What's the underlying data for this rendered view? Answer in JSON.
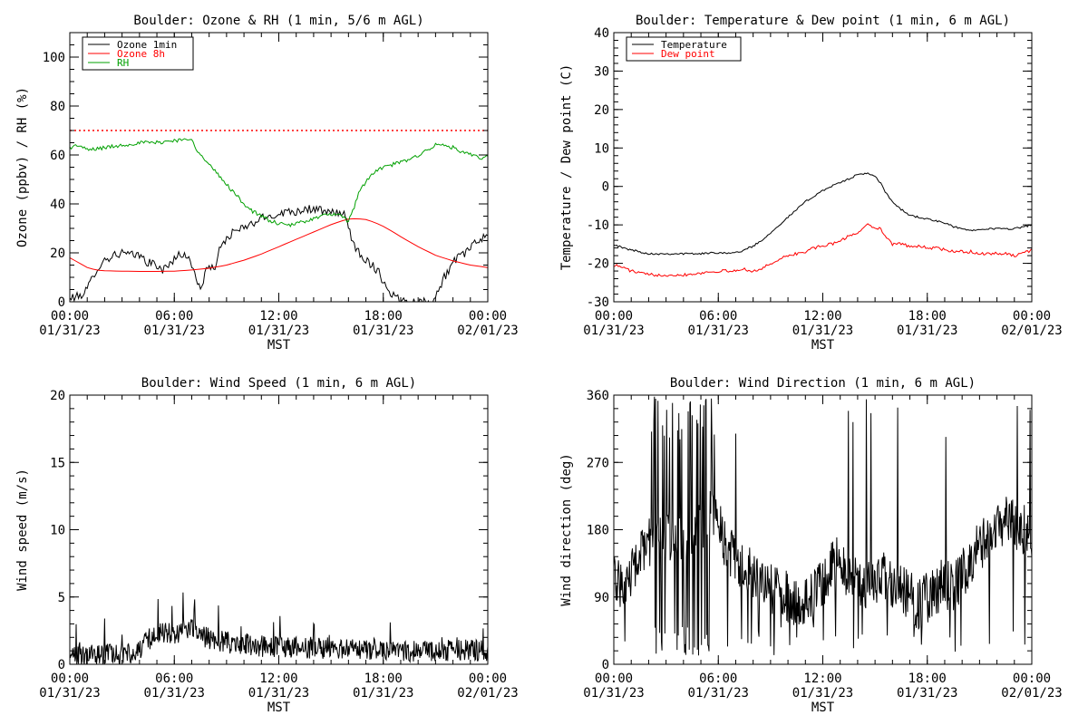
{
  "figure": {
    "background": "#ffffff",
    "colors": {
      "axis": "#000000",
      "black": "#000000",
      "red": "#ff0000",
      "green": "#00a000"
    }
  },
  "chart_data": [
    {
      "id": "ozone",
      "type": "line",
      "title": "Boulder: Ozone & RH (1 min, 5/6 m AGL)",
      "xlabel": "MST",
      "ylabel": "Ozone (ppbv) / RH (%)",
      "xlim": [
        0,
        24
      ],
      "ylim": [
        0,
        110
      ],
      "x_ticks": [
        {
          "v": 0,
          "l1": "00:00",
          "l2": "01/31/23"
        },
        {
          "v": 6,
          "l1": "06:00",
          "l2": "01/31/23"
        },
        {
          "v": 12,
          "l1": "12:00",
          "l2": "01/31/23"
        },
        {
          "v": 18,
          "l1": "18:00",
          "l2": "01/31/23"
        },
        {
          "v": 24,
          "l1": "00:00",
          "l2": "02/01/23"
        }
      ],
      "x_minor": 1,
      "y_ticks": [
        {
          "v": 0,
          "l": "0"
        },
        {
          "v": 20,
          "l": "20"
        },
        {
          "v": 40,
          "l": "40"
        },
        {
          "v": 60,
          "l": "60"
        },
        {
          "v": 80,
          "l": "80"
        },
        {
          "v": 100,
          "l": "100"
        }
      ],
      "y_minor": 5,
      "legend": {
        "position": "top-left"
      },
      "hlines": [
        {
          "y": 70,
          "color": "#ff0000",
          "style": "dotted"
        }
      ],
      "series": [
        {
          "name": "Ozone 1min",
          "color": "#000000",
          "noise": 1.8,
          "step_min": 5,
          "x": [
            0,
            0.2,
            0.5,
            1,
            1.5,
            2,
            2.5,
            3,
            3.5,
            4,
            4.5,
            5,
            5.3,
            5.6,
            6,
            6.3,
            6.6,
            7,
            7.3,
            7.6,
            7.8,
            8,
            8.3,
            8.6,
            9,
            9.5,
            10,
            10.5,
            11,
            11.5,
            12,
            12.5,
            13,
            13.5,
            14,
            14.5,
            15,
            15.5,
            15.8,
            16,
            16.2,
            16.4,
            16.8,
            17,
            17.5,
            17.8,
            18,
            18.5,
            19,
            19.5,
            20,
            20.5,
            21,
            21.5,
            22,
            22.5,
            23,
            23.5,
            24
          ],
          "y": [
            1,
            2,
            2,
            5,
            13,
            17,
            19,
            20,
            19,
            19,
            16,
            15,
            13,
            14,
            18,
            19,
            20,
            15,
            8,
            6,
            14,
            13,
            14,
            21,
            26,
            29,
            30,
            32,
            34,
            35,
            36,
            37,
            37,
            38,
            38,
            37,
            36,
            37,
            35,
            30,
            26,
            22,
            19,
            17,
            14,
            12,
            8,
            3,
            1,
            0,
            0,
            0,
            2,
            10,
            16,
            19,
            22,
            25,
            28
          ]
        },
        {
          "name": "Ozone 8h",
          "color": "#ff0000",
          "noise": 0,
          "step_min": 20,
          "x": [
            0,
            0.5,
            1,
            1.5,
            2,
            3,
            4,
            5,
            6,
            7,
            8,
            9,
            10,
            11,
            12,
            13,
            14,
            15,
            15.5,
            16,
            16.5,
            17,
            17.5,
            18,
            18.5,
            19,
            20,
            21,
            22,
            23,
            24
          ],
          "y": [
            18,
            16,
            14,
            13,
            12.7,
            12.5,
            12.4,
            12.4,
            12.5,
            13,
            13.7,
            15,
            17,
            19.5,
            22.5,
            25.5,
            28.5,
            31.5,
            32.8,
            33.8,
            34,
            33.6,
            32.5,
            30.8,
            28.8,
            26.6,
            22.5,
            19,
            16.7,
            15,
            14
          ]
        },
        {
          "name": "RH",
          "color": "#00a000",
          "noise": 0.8,
          "step_min": 5,
          "x": [
            0,
            0.5,
            1,
            2,
            3,
            4,
            5,
            6,
            6.5,
            7,
            7.3,
            7.6,
            8,
            8.5,
            9,
            9.5,
            10,
            10.5,
            11,
            11.5,
            12,
            12.5,
            13,
            13.5,
            14,
            14.5,
            15,
            15.5,
            16,
            16.3,
            16.6,
            17,
            17.5,
            18,
            18.5,
            19,
            19.5,
            20,
            20.5,
            21,
            21.5,
            22,
            22.5,
            23,
            23.5,
            24
          ],
          "y": [
            63,
            64,
            62,
            63,
            64,
            65,
            65,
            66,
            66,
            67,
            62,
            59,
            56,
            52,
            48,
            44,
            40,
            37,
            35,
            33,
            32,
            31,
            32,
            33,
            34,
            35,
            36,
            35,
            33,
            38,
            45,
            49,
            53,
            55,
            56,
            57,
            58,
            60,
            62,
            64,
            64,
            63,
            61,
            60,
            59,
            59
          ]
        }
      ]
    },
    {
      "id": "temperature",
      "type": "line",
      "title": "Boulder: Temperature & Dew point (1 min, 6 m AGL)",
      "xlabel": "MST",
      "ylabel": "Temperature / Dew point (C)",
      "xlim": [
        0,
        24
      ],
      "ylim": [
        -30,
        40
      ],
      "x_ticks": [
        {
          "v": 0,
          "l1": "00:00",
          "l2": "01/31/23"
        },
        {
          "v": 6,
          "l1": "06:00",
          "l2": "01/31/23"
        },
        {
          "v": 12,
          "l1": "12:00",
          "l2": "01/31/23"
        },
        {
          "v": 18,
          "l1": "18:00",
          "l2": "01/31/23"
        },
        {
          "v": 24,
          "l1": "00:00",
          "l2": "02/01/23"
        }
      ],
      "x_minor": 1,
      "y_ticks": [
        {
          "v": -30,
          "l": "-30"
        },
        {
          "v": -20,
          "l": "-20"
        },
        {
          "v": -10,
          "l": "-10"
        },
        {
          "v": 0,
          "l": "0"
        },
        {
          "v": 10,
          "l": "10"
        },
        {
          "v": 20,
          "l": "20"
        },
        {
          "v": 30,
          "l": "30"
        },
        {
          "v": 40,
          "l": "40"
        }
      ],
      "y_minor": 2,
      "legend": {
        "position": "top-left"
      },
      "hlines": [],
      "series": [
        {
          "name": "Temperature",
          "color": "#000000",
          "noise": 0.25,
          "step_min": 5,
          "x": [
            0,
            0.5,
            1,
            1.5,
            2,
            3,
            4,
            5,
            6,
            7,
            7.5,
            8,
            8.5,
            9,
            9.5,
            10,
            10.5,
            11,
            11.5,
            12,
            12.5,
            13,
            13.5,
            14,
            14.5,
            15,
            15.3,
            15.6,
            16,
            16.5,
            17,
            17.5,
            18,
            18.5,
            19,
            19.5,
            20,
            20.5,
            21,
            21.5,
            22,
            22.5,
            23,
            23.5,
            24
          ],
          "y": [
            -15,
            -16,
            -16.5,
            -17,
            -17.5,
            -17.5,
            -17.5,
            -17.5,
            -17.2,
            -17.3,
            -16.5,
            -15.5,
            -14,
            -12,
            -10,
            -8,
            -6,
            -4,
            -2.5,
            -1,
            0,
            1,
            2,
            3,
            3.5,
            2.5,
            1,
            -1.5,
            -4,
            -6,
            -7.5,
            -8,
            -8.5,
            -9,
            -9.5,
            -10.5,
            -11,
            -11.5,
            -11,
            -11,
            -11,
            -11,
            -11,
            -10.5,
            -10
          ]
        },
        {
          "name": "Dew point",
          "color": "#ff0000",
          "noise": 0.4,
          "step_min": 5,
          "x": [
            0,
            0.5,
            1,
            1.5,
            2,
            3,
            4,
            5,
            6,
            7,
            7.5,
            8,
            8.5,
            9,
            9.5,
            10,
            10.5,
            11,
            11.5,
            12,
            12.5,
            13,
            13.5,
            14,
            14.5,
            15,
            15.3,
            15.6,
            16,
            16.5,
            17,
            17.5,
            18,
            18.5,
            19,
            19.5,
            20,
            20.5,
            21,
            21.5,
            22,
            22.5,
            23,
            23.5,
            24
          ],
          "y": [
            -20.5,
            -21,
            -22,
            -22.5,
            -23,
            -23,
            -23,
            -22.5,
            -22,
            -22,
            -21.5,
            -22,
            -21.5,
            -20,
            -19,
            -18,
            -17.5,
            -17,
            -16,
            -15.5,
            -15,
            -14,
            -13,
            -12,
            -10,
            -10.5,
            -11,
            -13,
            -15,
            -15,
            -15.5,
            -15.5,
            -16,
            -16,
            -16.5,
            -17,
            -17,
            -17,
            -17.5,
            -17.5,
            -17.5,
            -17.5,
            -18,
            -17.5,
            -16.5
          ]
        }
      ]
    },
    {
      "id": "windspeed",
      "type": "line",
      "title": "Boulder: Wind Speed (1 min, 6 m AGL)",
      "xlabel": "MST",
      "ylabel": "Wind speed (m/s)",
      "xlim": [
        0,
        24
      ],
      "ylim": [
        0,
        20
      ],
      "x_ticks": [
        {
          "v": 0,
          "l1": "00:00",
          "l2": "01/31/23"
        },
        {
          "v": 6,
          "l1": "06:00",
          "l2": "01/31/23"
        },
        {
          "v": 12,
          "l1": "12:00",
          "l2": "01/31/23"
        },
        {
          "v": 18,
          "l1": "18:00",
          "l2": "01/31/23"
        },
        {
          "v": 24,
          "l1": "00:00",
          "l2": "02/01/23"
        }
      ],
      "x_minor": 1,
      "y_ticks": [
        {
          "v": 0,
          "l": "0"
        },
        {
          "v": 5,
          "l": "5"
        },
        {
          "v": 10,
          "l": "10"
        },
        {
          "v": 15,
          "l": "15"
        },
        {
          "v": 20,
          "l": "20"
        }
      ],
      "y_minor": 1,
      "legend": null,
      "hlines": [],
      "series": [
        {
          "name": "",
          "color": "#000000",
          "noise": 1.0,
          "noise_mode": "positive",
          "step_min": 2,
          "x": [
            0,
            0.5,
            1,
            2,
            3,
            3.5,
            4,
            4.5,
            5,
            5.5,
            6,
            6.5,
            7,
            7.5,
            8,
            8.5,
            9,
            10,
            11,
            12,
            13,
            14,
            15,
            16,
            17,
            18,
            19,
            20,
            21,
            22,
            23,
            24
          ],
          "y": [
            0.6,
            0.4,
            0.4,
            0.5,
            0.4,
            0.6,
            0.9,
            1.6,
            2,
            2.1,
            2,
            2.2,
            2.5,
            1.9,
            1.7,
            1.5,
            1.4,
            1.2,
            1.1,
            1.1,
            1,
            0.9,
            1,
            0.8,
            0.9,
            0.9,
            0.8,
            0.7,
            0.8,
            0.8,
            0.8,
            0.8
          ]
        }
      ]
    },
    {
      "id": "winddir",
      "type": "line",
      "title": "Boulder: Wind Direction (1 min, 6 m AGL)",
      "xlabel": "MST",
      "ylabel": "Wind direction (deg)",
      "xlim": [
        0,
        24
      ],
      "ylim": [
        0,
        360
      ],
      "x_ticks": [
        {
          "v": 0,
          "l1": "00:00",
          "l2": "01/31/23"
        },
        {
          "v": 6,
          "l1": "06:00",
          "l2": "01/31/23"
        },
        {
          "v": 12,
          "l1": "12:00",
          "l2": "01/31/23"
        },
        {
          "v": 18,
          "l1": "18:00",
          "l2": "01/31/23"
        },
        {
          "v": 24,
          "l1": "00:00",
          "l2": "02/01/23"
        }
      ],
      "x_minor": 1,
      "y_ticks": [
        {
          "v": 0,
          "l": "0"
        },
        {
          "v": 90,
          "l": "90"
        },
        {
          "v": 180,
          "l": "180"
        },
        {
          "v": 270,
          "l": "270"
        },
        {
          "v": 360,
          "l": "360"
        }
      ],
      "y_minor": 18,
      "legend": null,
      "hlines": [],
      "series": [
        {
          "name": "",
          "color": "#000000",
          "noise": 35,
          "noise_mode": "spiky",
          "step_min": 2,
          "x": [
            0,
            0.5,
            1,
            1.5,
            2,
            2.5,
            3,
            3.5,
            4,
            4.5,
            5,
            5.5,
            6,
            6.5,
            7,
            7.5,
            8,
            8.5,
            9,
            9.5,
            10,
            10.5,
            11,
            11.5,
            12,
            12.5,
            13,
            13.5,
            14,
            14.5,
            15,
            15.5,
            16,
            16.5,
            17,
            17.5,
            18,
            18.5,
            19,
            19.5,
            20,
            20.5,
            21,
            21.5,
            22,
            22.5,
            23,
            23.5,
            24
          ],
          "y": [
            110,
            100,
            120,
            140,
            160,
            180,
            170,
            170,
            170,
            180,
            180,
            200,
            190,
            150,
            140,
            130,
            120,
            110,
            100,
            100,
            90,
            80,
            80,
            90,
            110,
            130,
            140,
            120,
            110,
            100,
            110,
            120,
            110,
            100,
            90,
            80,
            90,
            100,
            110,
            100,
            120,
            140,
            160,
            170,
            180,
            190,
            190,
            180,
            170
          ]
        }
      ]
    }
  ]
}
